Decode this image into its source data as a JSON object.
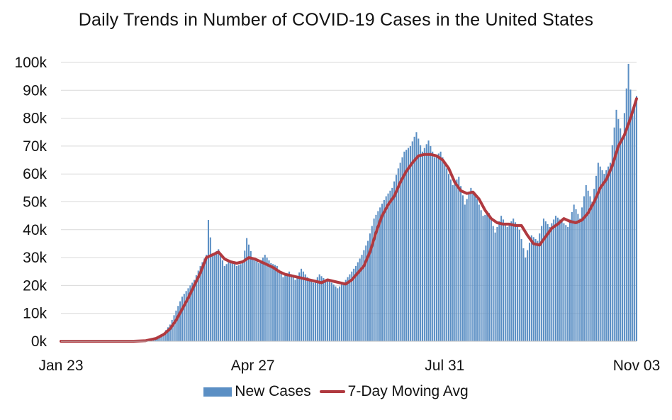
{
  "colors": {
    "bars": "#5b8fc4",
    "line": "#b0393f",
    "grid": "#d9d9d9"
  },
  "chart_data": {
    "type": "bar",
    "title": "Daily Trends in Number of COVID-19 Cases in the United States",
    "xlabel": "",
    "ylabel": "",
    "ylim": [
      0,
      100000
    ],
    "yticks": [
      0,
      10000,
      20000,
      30000,
      40000,
      50000,
      60000,
      70000,
      80000,
      90000,
      100000
    ],
    "ytick_labels": [
      "0k",
      "10k",
      "20k",
      "30k",
      "40k",
      "50k",
      "60k",
      "70k",
      "80k",
      "90k",
      "100k"
    ],
    "x_range": [
      "2020-01-23",
      "2020-11-03"
    ],
    "xtick_labels": [
      {
        "date": "2020-01-23",
        "label": "Jan 23"
      },
      {
        "date": "2020-04-27",
        "label": "Apr 27"
      },
      {
        "date": "2020-07-31",
        "label": "Jul 31"
      },
      {
        "date": "2020-11-03",
        "label": "Nov 03"
      }
    ],
    "grid": true,
    "legend": "bottom",
    "series": [
      {
        "name": "New Cases",
        "type": "bar",
        "points": [
          [
            "2020-01-23",
            0
          ],
          [
            "2020-02-20",
            0
          ],
          [
            "2020-03-01",
            100
          ],
          [
            "2020-03-05",
            300
          ],
          [
            "2020-03-08",
            700
          ],
          [
            "2020-03-11",
            1500
          ],
          [
            "2020-03-14",
            3000
          ],
          [
            "2020-03-17",
            6000
          ],
          [
            "2020-03-20",
            11000
          ],
          [
            "2020-03-23",
            16000
          ],
          [
            "2020-03-26",
            19000
          ],
          [
            "2020-03-29",
            22000
          ],
          [
            "2020-04-01",
            27000
          ],
          [
            "2020-04-04",
            31000
          ],
          [
            "2020-04-05",
            43500
          ],
          [
            "2020-04-07",
            31000
          ],
          [
            "2020-04-10",
            33000
          ],
          [
            "2020-04-13",
            27000
          ],
          [
            "2020-04-16",
            29000
          ],
          [
            "2020-04-19",
            27000
          ],
          [
            "2020-04-22",
            28000
          ],
          [
            "2020-04-24",
            37000
          ],
          [
            "2020-04-27",
            30000
          ],
          [
            "2020-04-30",
            28000
          ],
          [
            "2020-05-03",
            31000
          ],
          [
            "2020-05-06",
            28000
          ],
          [
            "2020-05-09",
            27000
          ],
          [
            "2020-05-12",
            23000
          ],
          [
            "2020-05-15",
            25000
          ],
          [
            "2020-05-18",
            22000
          ],
          [
            "2020-05-21",
            26000
          ],
          [
            "2020-05-24",
            23000
          ],
          [
            "2020-05-27",
            21000
          ],
          [
            "2020-05-30",
            24000
          ],
          [
            "2020-06-02",
            22000
          ],
          [
            "2020-06-05",
            21000
          ],
          [
            "2020-06-08",
            19000
          ],
          [
            "2020-06-11",
            21000
          ],
          [
            "2020-06-14",
            24000
          ],
          [
            "2020-06-17",
            27000
          ],
          [
            "2020-06-20",
            31000
          ],
          [
            "2020-06-23",
            36000
          ],
          [
            "2020-06-26",
            44000
          ],
          [
            "2020-06-29",
            48000
          ],
          [
            "2020-07-02",
            52000
          ],
          [
            "2020-07-05",
            55000
          ],
          [
            "2020-07-08",
            62000
          ],
          [
            "2020-07-11",
            68000
          ],
          [
            "2020-07-14",
            70000
          ],
          [
            "2020-07-17",
            75000
          ],
          [
            "2020-07-20",
            68000
          ],
          [
            "2020-07-23",
            72000
          ],
          [
            "2020-07-26",
            66000
          ],
          [
            "2020-07-29",
            68000
          ],
          [
            "2020-08-01",
            62000
          ],
          [
            "2020-08-04",
            56000
          ],
          [
            "2020-08-07",
            59000
          ],
          [
            "2020-08-10",
            49000
          ],
          [
            "2020-08-13",
            55000
          ],
          [
            "2020-08-16",
            51000
          ],
          [
            "2020-08-19",
            45000
          ],
          [
            "2020-08-22",
            46000
          ],
          [
            "2020-08-25",
            39000
          ],
          [
            "2020-08-28",
            45000
          ],
          [
            "2020-08-31",
            41000
          ],
          [
            "2020-09-03",
            44000
          ],
          [
            "2020-09-06",
            40000
          ],
          [
            "2020-09-09",
            30000
          ],
          [
            "2020-09-12",
            38000
          ],
          [
            "2020-09-15",
            36000
          ],
          [
            "2020-09-18",
            44000
          ],
          [
            "2020-09-21",
            41000
          ],
          [
            "2020-09-24",
            45000
          ],
          [
            "2020-09-27",
            43000
          ],
          [
            "2020-09-30",
            41000
          ],
          [
            "2020-10-03",
            49000
          ],
          [
            "2020-10-06",
            44000
          ],
          [
            "2020-10-09",
            56000
          ],
          [
            "2020-10-12",
            50000
          ],
          [
            "2020-10-15",
            64000
          ],
          [
            "2020-10-18",
            60000
          ],
          [
            "2020-10-21",
            64000
          ],
          [
            "2020-10-24",
            83000
          ],
          [
            "2020-10-27",
            73000
          ],
          [
            "2020-10-30",
            99500
          ],
          [
            "2020-11-01",
            81000
          ],
          [
            "2020-11-03",
            88000
          ]
        ]
      },
      {
        "name": "7-Day Moving Avg",
        "type": "line",
        "points": [
          [
            "2020-01-23",
            0
          ],
          [
            "2020-02-28",
            0
          ],
          [
            "2020-03-05",
            200
          ],
          [
            "2020-03-10",
            1000
          ],
          [
            "2020-03-14",
            2500
          ],
          [
            "2020-03-17",
            4500
          ],
          [
            "2020-03-20",
            7500
          ],
          [
            "2020-03-23",
            11500
          ],
          [
            "2020-03-26",
            15500
          ],
          [
            "2020-03-29",
            20000
          ],
          [
            "2020-04-01",
            24500
          ],
          [
            "2020-04-04",
            30000
          ],
          [
            "2020-04-07",
            31000
          ],
          [
            "2020-04-10",
            32000
          ],
          [
            "2020-04-13",
            29500
          ],
          [
            "2020-04-16",
            28500
          ],
          [
            "2020-04-19",
            28000
          ],
          [
            "2020-04-22",
            28500
          ],
          [
            "2020-04-25",
            30000
          ],
          [
            "2020-04-28",
            29500
          ],
          [
            "2020-05-01",
            28500
          ],
          [
            "2020-05-04",
            27500
          ],
          [
            "2020-05-07",
            26500
          ],
          [
            "2020-05-10",
            25000
          ],
          [
            "2020-05-13",
            24000
          ],
          [
            "2020-05-16",
            23500
          ],
          [
            "2020-05-19",
            23000
          ],
          [
            "2020-05-22",
            22500
          ],
          [
            "2020-05-25",
            22000
          ],
          [
            "2020-05-28",
            21500
          ],
          [
            "2020-05-31",
            21000
          ],
          [
            "2020-06-03",
            22000
          ],
          [
            "2020-06-06",
            21500
          ],
          [
            "2020-06-09",
            21000
          ],
          [
            "2020-06-12",
            20500
          ],
          [
            "2020-06-15",
            22000
          ],
          [
            "2020-06-18",
            24500
          ],
          [
            "2020-06-21",
            27000
          ],
          [
            "2020-06-24",
            32000
          ],
          [
            "2020-06-27",
            39000
          ],
          [
            "2020-06-30",
            45000
          ],
          [
            "2020-07-03",
            49000
          ],
          [
            "2020-07-06",
            52000
          ],
          [
            "2020-07-09",
            57000
          ],
          [
            "2020-07-12",
            61000
          ],
          [
            "2020-07-15",
            64000
          ],
          [
            "2020-07-18",
            66500
          ],
          [
            "2020-07-21",
            67000
          ],
          [
            "2020-07-24",
            67000
          ],
          [
            "2020-07-27",
            66500
          ],
          [
            "2020-07-30",
            65000
          ],
          [
            "2020-08-02",
            62000
          ],
          [
            "2020-08-05",
            57000
          ],
          [
            "2020-08-08",
            54000
          ],
          [
            "2020-08-11",
            53000
          ],
          [
            "2020-08-14",
            53500
          ],
          [
            "2020-08-17",
            51000
          ],
          [
            "2020-08-20",
            47000
          ],
          [
            "2020-08-23",
            44000
          ],
          [
            "2020-08-26",
            42500
          ],
          [
            "2020-08-29",
            42000
          ],
          [
            "2020-09-01",
            42000
          ],
          [
            "2020-09-04",
            41500
          ],
          [
            "2020-09-07",
            41500
          ],
          [
            "2020-09-10",
            38000
          ],
          [
            "2020-09-13",
            35000
          ],
          [
            "2020-09-16",
            34500
          ],
          [
            "2020-09-19",
            37500
          ],
          [
            "2020-09-22",
            40500
          ],
          [
            "2020-09-25",
            42000
          ],
          [
            "2020-09-28",
            44000
          ],
          [
            "2020-10-01",
            43000
          ],
          [
            "2020-10-04",
            42500
          ],
          [
            "2020-10-07",
            43500
          ],
          [
            "2020-10-10",
            46000
          ],
          [
            "2020-10-13",
            50000
          ],
          [
            "2020-10-16",
            55000
          ],
          [
            "2020-10-19",
            58000
          ],
          [
            "2020-10-22",
            63000
          ],
          [
            "2020-10-25",
            70000
          ],
          [
            "2020-10-28",
            74000
          ],
          [
            "2020-10-31",
            80000
          ],
          [
            "2020-11-03",
            87000
          ]
        ]
      }
    ]
  }
}
